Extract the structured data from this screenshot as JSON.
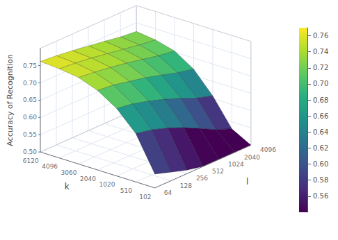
{
  "chart_data": {
    "type": "surface",
    "xlabel": "k",
    "ylabel": "l",
    "zlabel": "Accuracy of Recognition",
    "x": [
      "6120",
      "4096",
      "3060",
      "2040",
      "1020",
      "510",
      "102"
    ],
    "y": [
      "64",
      "128",
      "256",
      "512",
      "1024",
      "2040",
      "4096"
    ],
    "z": [
      [
        0.762,
        0.758,
        0.752,
        0.745,
        0.738,
        0.73,
        0.725
      ],
      [
        0.758,
        0.754,
        0.748,
        0.74,
        0.732,
        0.724,
        0.718
      ],
      [
        0.75,
        0.745,
        0.738,
        0.73,
        0.72,
        0.71,
        0.703
      ],
      [
        0.73,
        0.725,
        0.715,
        0.705,
        0.692,
        0.678,
        0.668
      ],
      [
        0.695,
        0.688,
        0.675,
        0.66,
        0.642,
        0.622,
        0.608
      ],
      [
        0.64,
        0.63,
        0.615,
        0.595,
        0.572,
        0.548,
        0.53
      ],
      [
        0.54,
        0.525,
        0.51,
        0.5,
        0.5,
        0.5,
        0.5
      ]
    ],
    "zlim": [
      0.5,
      0.8
    ],
    "zticks": [
      {
        "value": 0.5,
        "label": "0.50"
      },
      0.55,
      {
        "value": 0.6,
        "label": "0.60"
      },
      0.65,
      {
        "value": 0.7,
        "label": "0.70"
      },
      0.75
    ],
    "colorbar": {
      "range": [
        0.54,
        0.77
      ],
      "ticks": [
        0.56,
        0.58,
        {
          "value": 0.6,
          "label": "0.60"
        },
        0.62,
        0.64,
        0.66,
        0.68,
        {
          "value": 0.7,
          "label": "0.70"
        },
        0.72,
        0.74,
        0.76
      ]
    },
    "grid": true
  }
}
